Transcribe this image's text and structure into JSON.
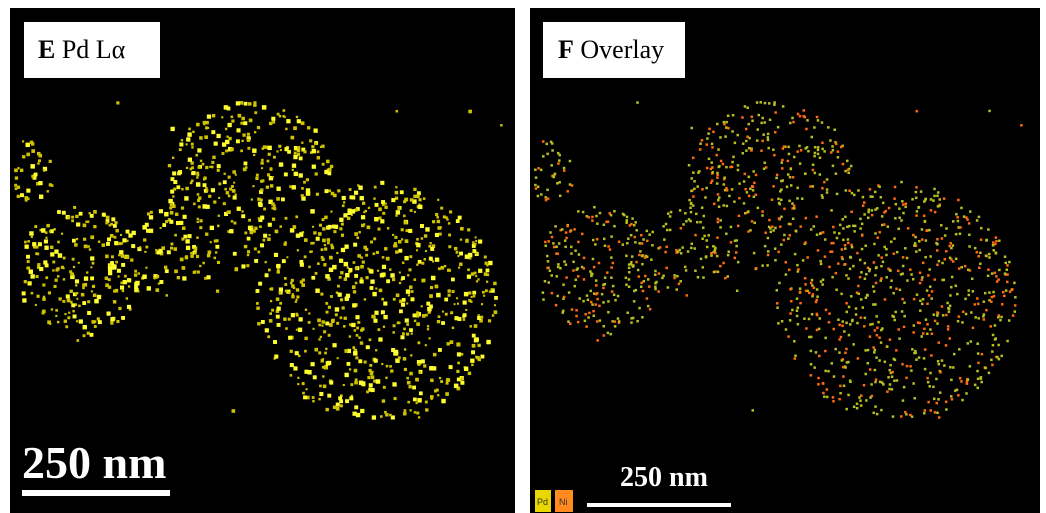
{
  "panels": [
    {
      "letter": "E",
      "label": "Pd Lα",
      "scale_bar": "250 nm"
    },
    {
      "letter": "F",
      "label": "Overlay",
      "scale_bar": "250 nm"
    }
  ],
  "legend": [
    "Pd",
    "Ni"
  ]
}
